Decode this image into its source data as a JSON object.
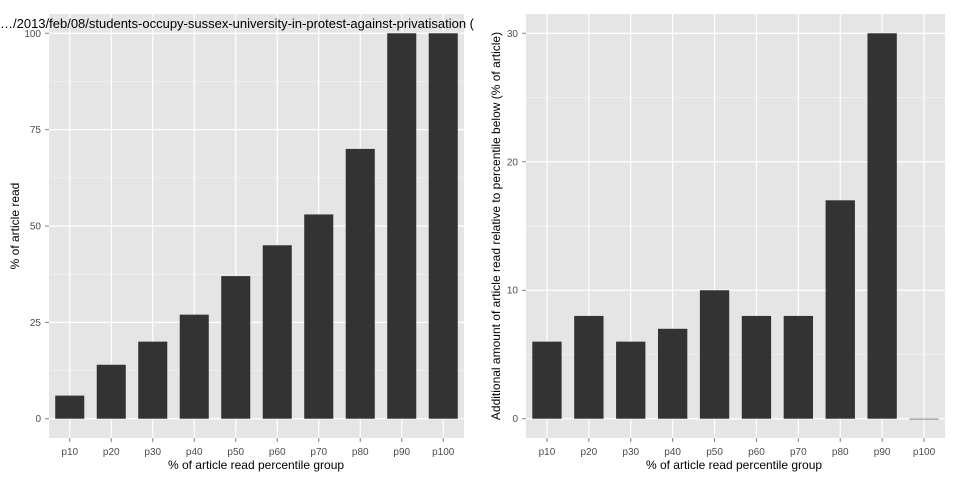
{
  "chart_data": [
    {
      "type": "bar",
      "title": "…/2013/feb/08/students-occupy-sussex-university-in-protest-against-privatisation (",
      "xlabel": "% of article read percentile group",
      "ylabel": "% of article read",
      "categories": [
        "p10",
        "p20",
        "p30",
        "p40",
        "p50",
        "p60",
        "p70",
        "p80",
        "p90",
        "p100"
      ],
      "values": [
        6,
        14,
        20,
        27,
        37,
        45,
        53,
        70,
        100,
        100
      ],
      "ylim": [
        -5,
        105
      ],
      "yticks": [
        0,
        25,
        50,
        75,
        100
      ],
      "grid": true,
      "bar_color": "#333333",
      "panel_background": "#e5e5e5",
      "grid_color": "#ffffff"
    },
    {
      "type": "bar",
      "title": "",
      "xlabel": "% of article read percentile group",
      "ylabel": "Additional amount of article read relative to percentile below (% of article)",
      "categories": [
        "p10",
        "p20",
        "p30",
        "p40",
        "p50",
        "p60",
        "p70",
        "p80",
        "p90",
        "p100"
      ],
      "values": [
        6,
        8,
        6,
        7,
        10,
        8,
        8,
        17,
        30,
        0
      ],
      "ylim": [
        -1.5,
        31.5
      ],
      "yticks": [
        0,
        10,
        20,
        30
      ],
      "grid": true,
      "bar_color": "#333333",
      "panel_background": "#e5e5e5",
      "grid_color": "#ffffff"
    }
  ]
}
